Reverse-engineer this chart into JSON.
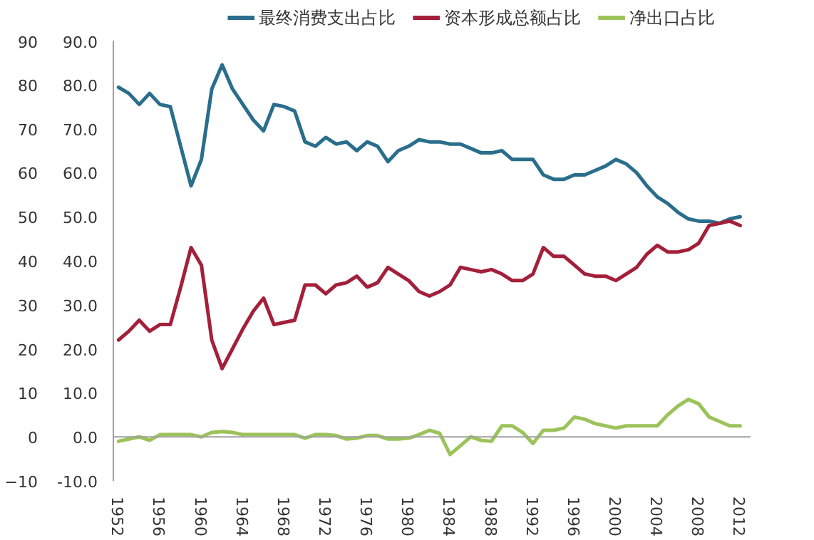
{
  "chart_data": {
    "type": "line",
    "x": [
      1952,
      1953,
      1954,
      1955,
      1956,
      1957,
      1958,
      1959,
      1960,
      1961,
      1962,
      1963,
      1964,
      1965,
      1966,
      1967,
      1968,
      1969,
      1970,
      1971,
      1972,
      1973,
      1974,
      1975,
      1976,
      1977,
      1978,
      1979,
      1980,
      1981,
      1982,
      1983,
      1984,
      1985,
      1986,
      1987,
      1988,
      1989,
      1990,
      1991,
      1992,
      1993,
      1994,
      1995,
      1996,
      1997,
      1998,
      1999,
      2000,
      2001,
      2002,
      2003,
      2004,
      2005,
      2006,
      2007,
      2008,
      2009,
      2010,
      2011,
      2012
    ],
    "series": [
      {
        "name": "最终消费支出占比",
        "color": "#2a6e8c",
        "values": [
          79.4,
          78,
          75.5,
          78,
          75.5,
          75,
          66,
          57,
          63,
          79,
          84.5,
          79,
          75.5,
          72,
          69.5,
          75.5,
          75,
          74,
          67,
          66,
          68,
          66.5,
          67,
          65,
          67,
          66,
          62.5,
          65,
          66,
          67.5,
          67,
          67,
          66.5,
          66.5,
          65.5,
          64.5,
          64.5,
          65,
          63,
          63,
          63,
          59.5,
          58.5,
          58.5,
          59.5,
          59.5,
          60.5,
          61.5,
          63,
          62,
          60,
          57,
          54.5,
          53,
          51,
          49.5,
          49,
          49,
          48.5,
          49.5,
          50
        ]
      },
      {
        "name": "资本形成总额占比",
        "color": "#a3203a",
        "values": [
          22,
          24,
          26.5,
          24,
          25.5,
          25.5,
          34,
          43,
          39,
          22,
          15.5,
          20,
          24.5,
          28.5,
          31.5,
          25.5,
          26,
          26.5,
          34.5,
          34.5,
          32.5,
          34.5,
          35,
          36.5,
          34,
          35,
          38.5,
          37,
          35.5,
          33,
          32,
          33,
          34.5,
          38.5,
          38,
          37.5,
          38,
          37,
          35.5,
          35.5,
          37,
          43,
          41,
          41,
          39,
          37,
          36.5,
          36.5,
          35.5,
          37,
          38.5,
          41.5,
          43.5,
          42,
          42,
          42.5,
          44,
          48,
          48.5,
          49,
          48
        ]
      },
      {
        "name": "净出口占比",
        "color": "#9bc35a",
        "values": [
          -1,
          -0.5,
          0,
          -0.8,
          0.5,
          0.5,
          0.5,
          0.5,
          0,
          1,
          1.2,
          1,
          0.5,
          0.5,
          0.5,
          0.5,
          0.5,
          0.5,
          -0.3,
          0.5,
          0.5,
          0.3,
          -0.5,
          -0.3,
          0.3,
          0.3,
          -0.5,
          -0.5,
          -0.3,
          0.5,
          1.5,
          0.8,
          -4,
          -2,
          0,
          -0.8,
          -1,
          2.5,
          2.5,
          1,
          -1.5,
          1.5,
          1.5,
          2,
          4.5,
          4,
          3,
          2.5,
          2,
          2.5,
          2.5,
          2.5,
          2.5,
          5,
          7,
          8.5,
          7.5,
          4.5,
          3.5,
          2.5,
          2.5
        ]
      }
    ],
    "xlim": [
      1951.5,
      2013
    ],
    "xticks": [
      1952,
      1956,
      1960,
      1964,
      1968,
      1972,
      1976,
      1980,
      1984,
      1988,
      1992,
      1996,
      2000,
      2004,
      2008,
      2012
    ],
    "ylim": [
      -10,
      90
    ],
    "yticks": [
      {
        "value": -10,
        "label": "-10.0"
      },
      {
        "value": 0,
        "label": "0.0"
      },
      {
        "value": 10,
        "label": "10.0"
      },
      {
        "value": 20,
        "label": "20.0"
      },
      {
        "value": 30,
        "label": "30.0"
      },
      {
        "value": 40,
        "label": "40.0"
      },
      {
        "value": 50,
        "label": "50.0"
      },
      {
        "value": 60,
        "label": "60.0"
      },
      {
        "value": 70,
        "label": "70.0"
      },
      {
        "value": 80,
        "label": "80.0"
      },
      {
        "value": 90,
        "label": "90.0"
      }
    ],
    "y2lim": [
      -10,
      90
    ],
    "y2ticks": [
      -10,
      0,
      10,
      20,
      30,
      40,
      50,
      60,
      70,
      80,
      90
    ],
    "ref_lines": [
      {
        "axis": "y",
        "value": 0,
        "color": "#a0a0a0"
      }
    ],
    "grid": false,
    "legend": "top",
    "marker": "none",
    "line_style": "solid"
  }
}
